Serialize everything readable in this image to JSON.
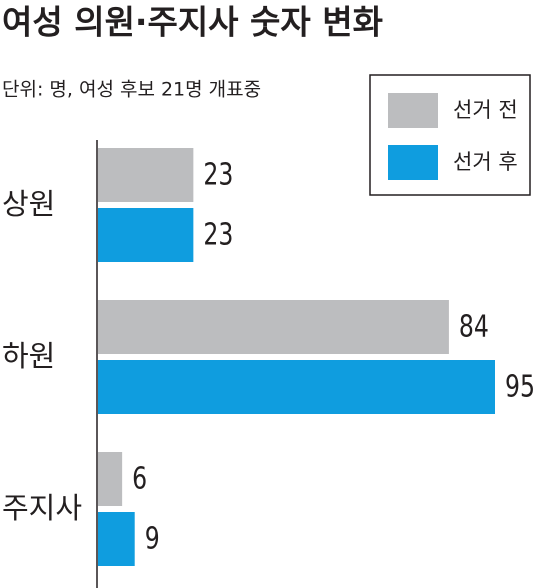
{
  "chart_data": {
    "type": "hbar",
    "title": "여성 의원·주지사 숫자 변화",
    "subtitle": "단위: 명, 여성 후보 21명 개표중",
    "categories": [
      "상원",
      "하원",
      "주지사"
    ],
    "series": [
      {
        "name": "선거 전",
        "color": "#bcbdbf",
        "values": [
          23,
          84,
          6
        ]
      },
      {
        "name": "선거 후",
        "color": "#0f9ddf",
        "values": [
          23,
          95,
          9
        ]
      }
    ]
  }
}
